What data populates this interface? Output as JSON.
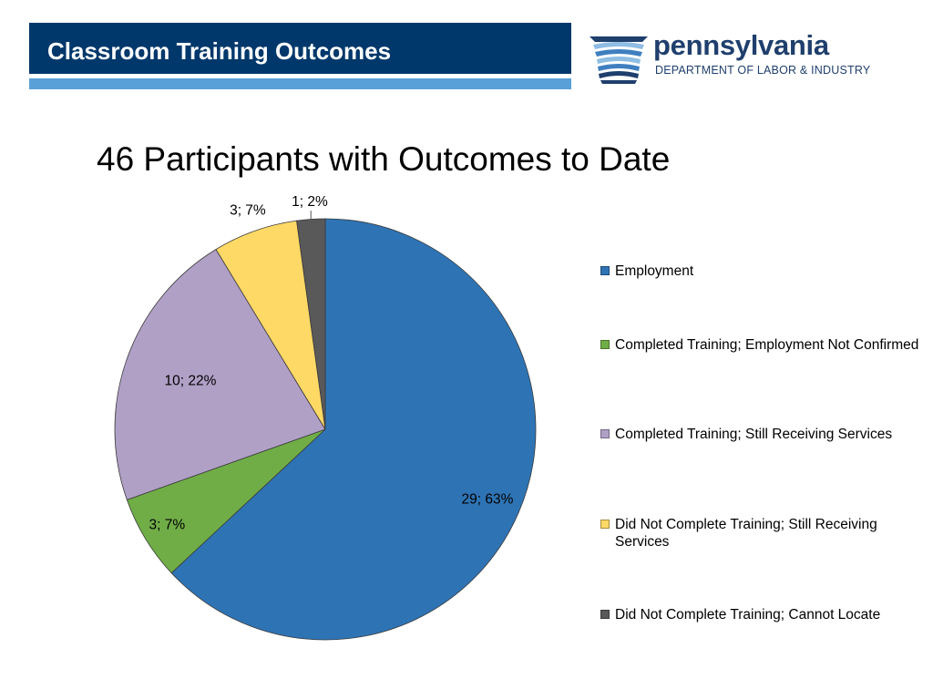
{
  "header": {
    "title": "Classroom Training Outcomes"
  },
  "logo": {
    "wordmark": "pennsylvania",
    "subtitle": "DEPARTMENT OF LABOR & INDUSTRY",
    "colors": {
      "navy": "#1f3f6d",
      "blue": "#3f7fc0",
      "light_blue": "#8fbde3"
    }
  },
  "colors": {
    "header_band": "#00386b",
    "header_rule": "#5aa0d8"
  },
  "chart_data": {
    "type": "pie",
    "title": "46 Participants with Outcomes to Date",
    "total": 46,
    "legend_position": "right",
    "categories": [
      "Employment",
      "Completed Training; Employment Not Confirmed",
      "Completed Training; Still Receiving Services",
      "Did Not Complete Training; Still Receiving Services",
      "Did Not Complete Training; Cannot Locate"
    ],
    "values": [
      29,
      3,
      10,
      3,
      1
    ],
    "percents": [
      63,
      7,
      22,
      7,
      2
    ],
    "data_labels": [
      "29; 63%",
      "3; 7%",
      "10; 22%",
      "3; 7%",
      "1; 2%"
    ],
    "colors": [
      "#2e74b5",
      "#70ad47",
      "#b0a0c6",
      "#ffd966",
      "#595959"
    ]
  }
}
